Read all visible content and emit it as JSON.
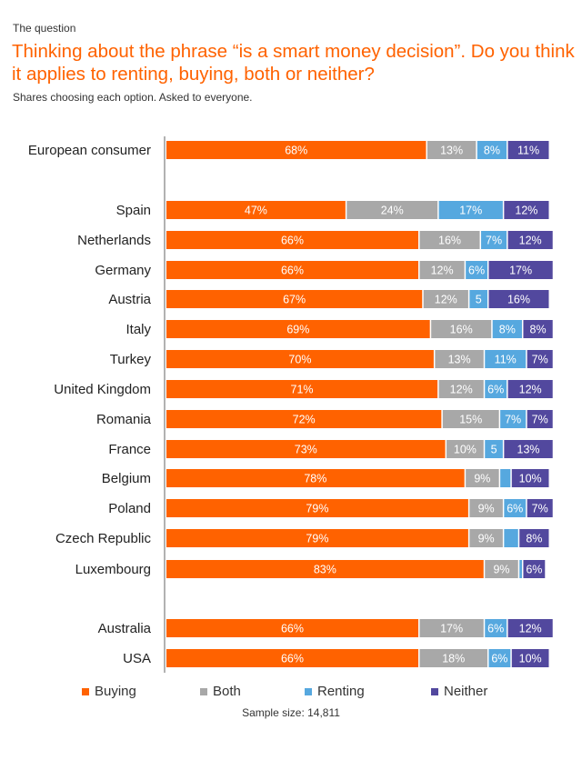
{
  "header": {
    "eyebrow": "The question",
    "title": "Thinking about the phrase “is a smart money decision”. Do you think it applies to renting, buying, both or neither?",
    "subtitle": "Shares choosing each option. Asked to everyone."
  },
  "chart_data": {
    "type": "bar",
    "orientation": "horizontal",
    "stacked": true,
    "categories": [
      "European consumer",
      "Spain",
      "Netherlands",
      "Germany",
      "Austria",
      "Italy",
      "Turkey",
      "United Kingdom",
      "Romania",
      "France",
      "Belgium",
      "Poland",
      "Czech Republic",
      "Luxembourg",
      "Australia",
      "USA"
    ],
    "series": [
      {
        "name": "Buying",
        "color": "#ff6200",
        "values": [
          68,
          47,
          66,
          66,
          67,
          69,
          70,
          71,
          72,
          73,
          78,
          79,
          79,
          83,
          66,
          66
        ],
        "labels": [
          "68%",
          "47%",
          "66%",
          "66%",
          "67%",
          "69%",
          "70%",
          "71%",
          "72%",
          "73%",
          "78%",
          "79%",
          "79%",
          "83%",
          "66%",
          "66%"
        ]
      },
      {
        "name": "Both",
        "color": "#a8a8a8",
        "values": [
          13,
          24,
          16,
          12,
          12,
          16,
          13,
          12,
          15,
          10,
          9,
          9,
          9,
          9,
          17,
          18
        ],
        "labels": [
          "13%",
          "24%",
          "16%",
          "12%",
          "12%",
          "16%",
          "13%",
          "12%",
          "15%",
          "10%",
          "9%",
          "9%",
          "9%",
          "9%",
          "17%",
          "18%"
        ]
      },
      {
        "name": "Renting",
        "color": "#56a8df",
        "values": [
          8,
          17,
          7,
          6,
          5,
          8,
          11,
          6,
          7,
          5,
          3,
          6,
          4,
          1,
          6,
          6
        ],
        "labels": [
          "8%",
          "17%",
          "7%",
          "6%",
          "5",
          "8%",
          "11%",
          "6%",
          "7%",
          "5",
          "",
          "6%",
          "",
          "",
          "6%",
          "6%"
        ]
      },
      {
        "name": "Neither",
        "color": "#52489e",
        "values": [
          11,
          12,
          12,
          17,
          16,
          8,
          7,
          12,
          7,
          13,
          10,
          7,
          8,
          6,
          12,
          10
        ],
        "labels": [
          "11%",
          "12%",
          "12%",
          "17%",
          "16%",
          "8%",
          "7%",
          "12%",
          "7%",
          "13%",
          "10%",
          "7%",
          "8%",
          "6%",
          "12%",
          "10%"
        ]
      }
    ],
    "xlim": [
      0,
      100
    ],
    "legend_position": "bottom",
    "grid": false
  },
  "footer": {
    "sample_size": "Sample size: 14,811"
  }
}
